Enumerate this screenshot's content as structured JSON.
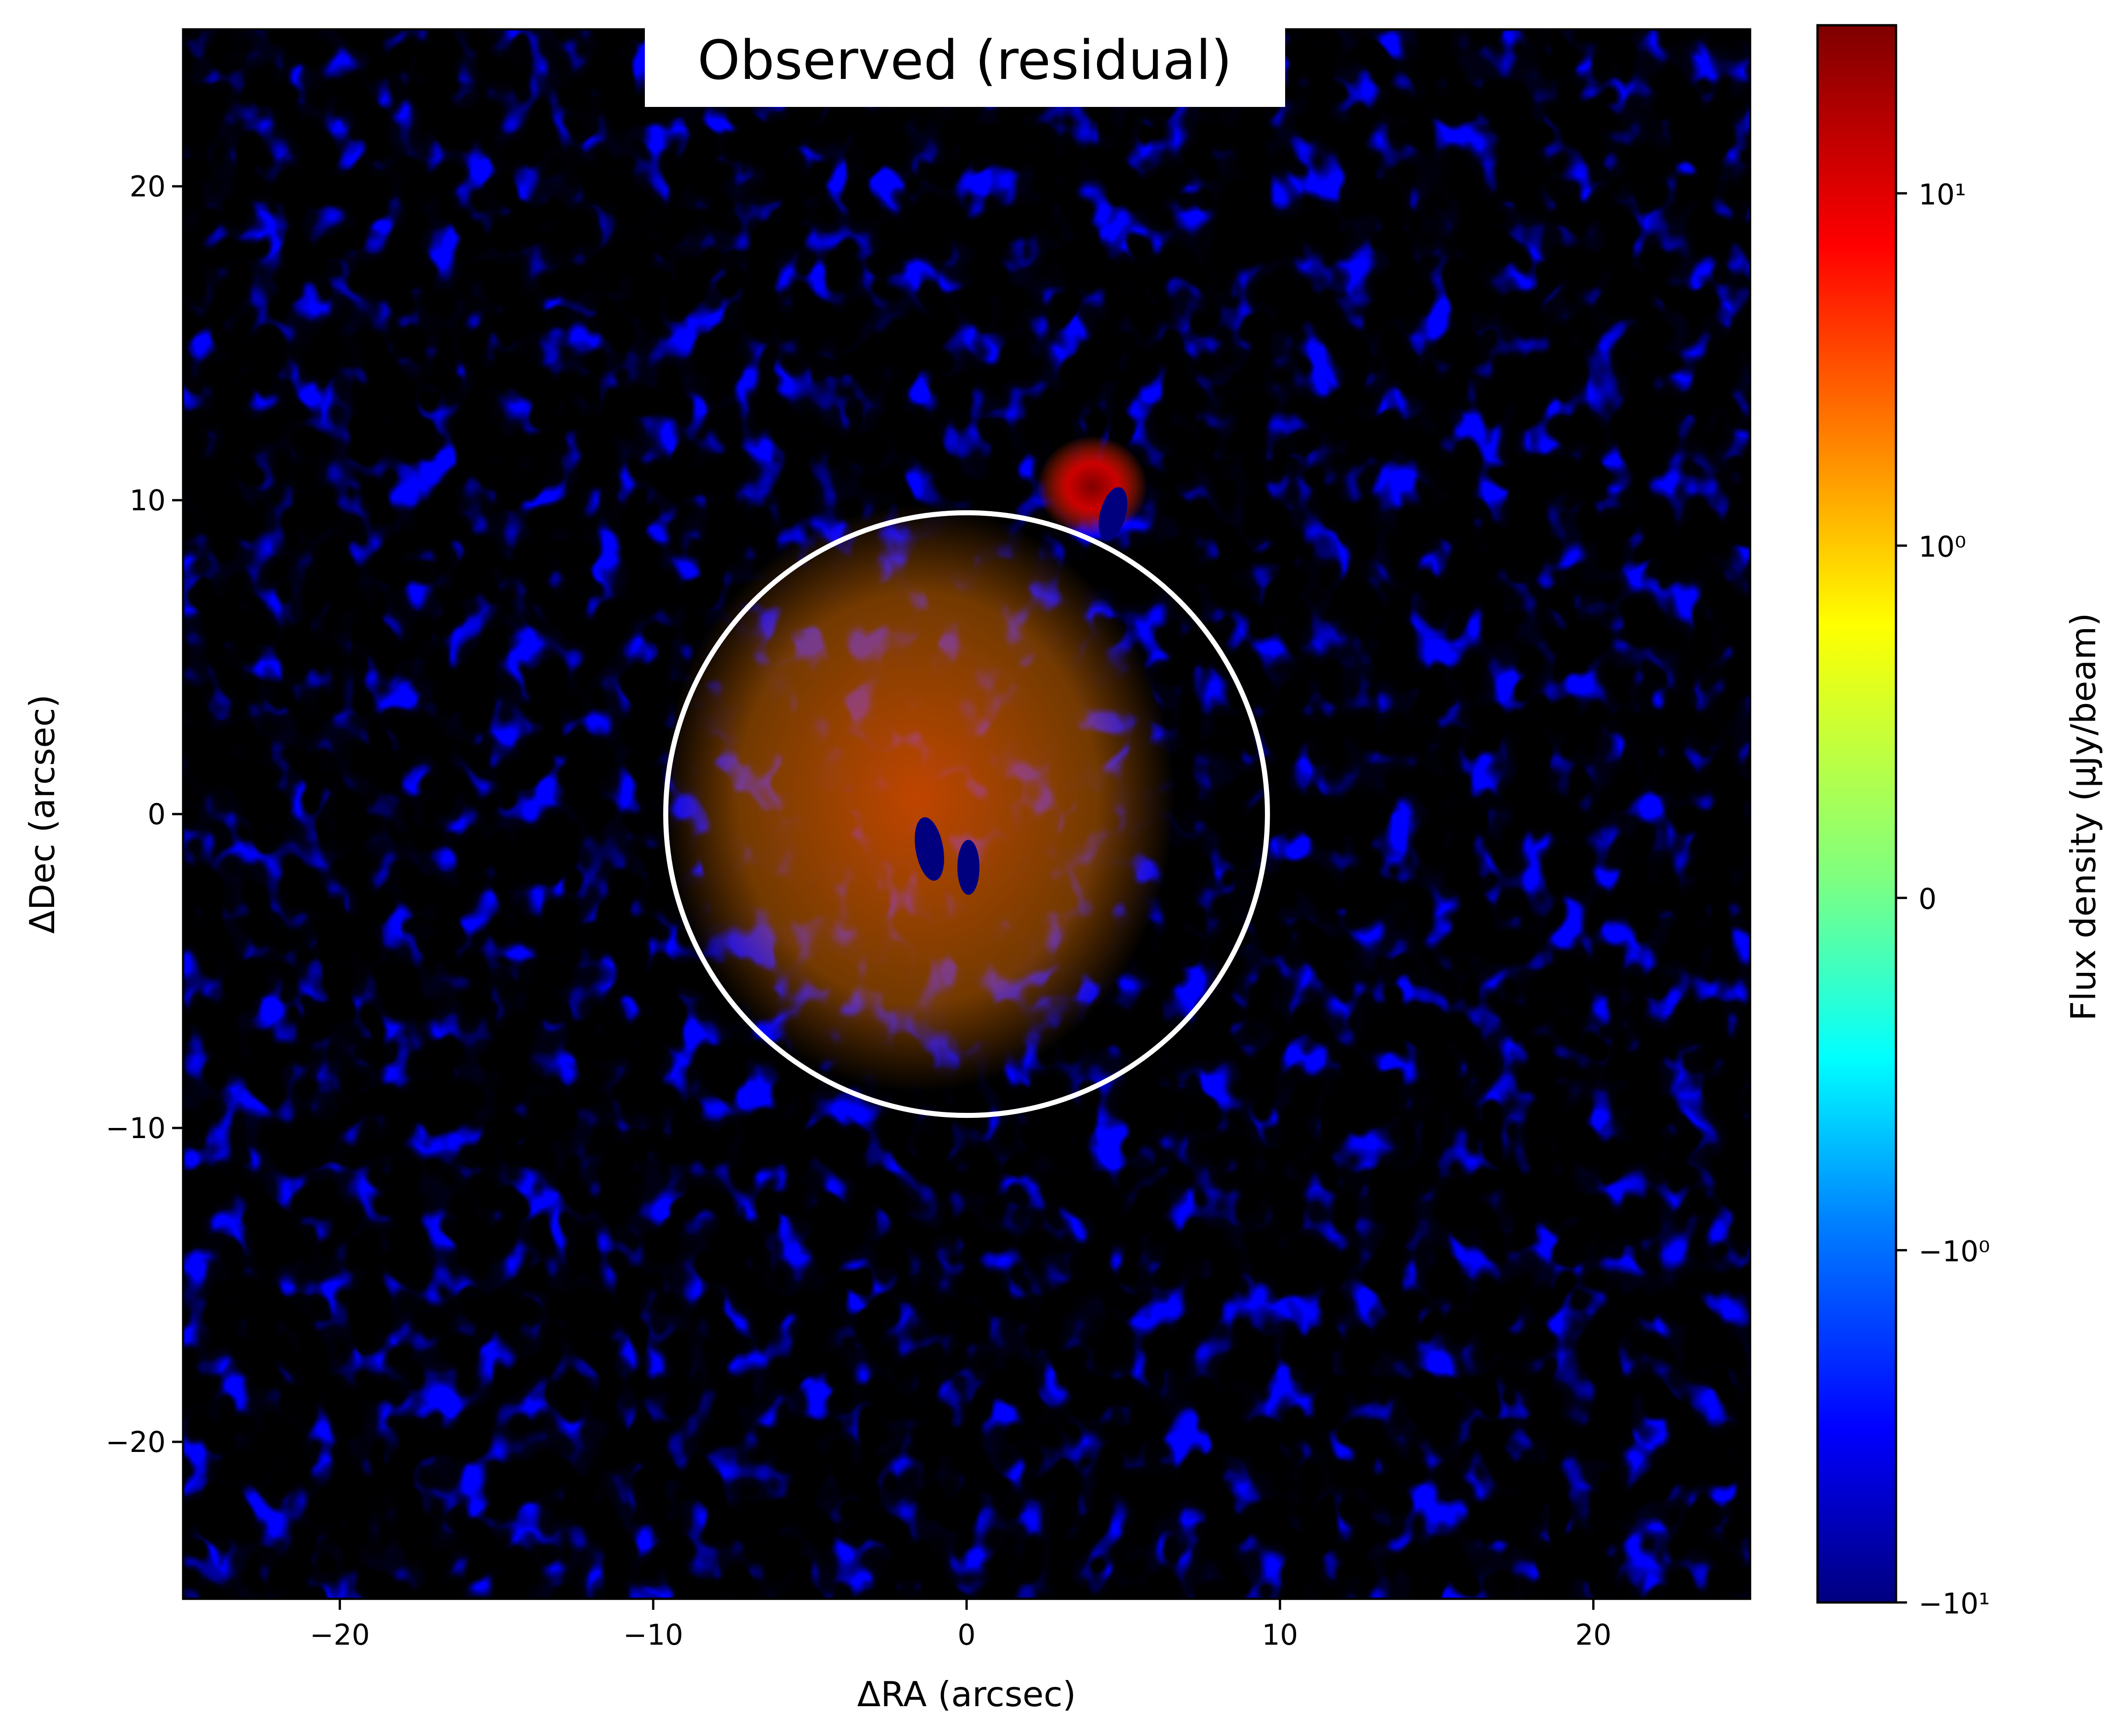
{
  "chart_data": {
    "type": "heatmap",
    "title": "Observed (residual)",
    "xlabel": "ΔRA (arcsec)",
    "ylabel": "ΔDec (arcsec)",
    "xlim": [
      -25,
      25
    ],
    "ylim": [
      -25,
      25
    ],
    "x_ticks": [
      -20,
      -10,
      0,
      10,
      20
    ],
    "y_ticks": [
      -20,
      -10,
      0,
      10,
      20
    ],
    "x_tick_labels": [
      "−20",
      "−10",
      "0",
      "10",
      "20"
    ],
    "y_tick_labels": [
      "−20",
      "−10",
      "0",
      "10",
      "20"
    ],
    "colormap": "jet",
    "color_scale": "symlog",
    "colorbar": {
      "label": "Flux density (μJy/beam)",
      "range": [
        -10,
        30
      ],
      "ticks": [
        {
          "value": 10,
          "label": "10¹"
        },
        {
          "value": 1,
          "label": "10⁰"
        },
        {
          "value": 0,
          "label": "0"
        },
        {
          "value": -1,
          "label": "−10⁰"
        },
        {
          "value": -10,
          "label": "−10¹"
        }
      ]
    },
    "annotations": [
      {
        "type": "circle",
        "center": [
          0,
          0
        ],
        "radius": 9.6,
        "color": "#ffffff"
      }
    ],
    "features": [
      {
        "description": "bright positive compact source",
        "x": 4.0,
        "y": 10.3,
        "value": 30
      },
      {
        "description": "negative pair near centre",
        "x": -1.0,
        "y": -1.0,
        "value": -10
      }
    ]
  },
  "colors": {
    "jet": [
      "#00007f",
      "#0000ff",
      "#007fff",
      "#00ffff",
      "#7fff7f",
      "#ffff00",
      "#ff7f00",
      "#ff0000",
      "#7f0000"
    ],
    "circle": "#ffffff",
    "axes": "#000000"
  }
}
